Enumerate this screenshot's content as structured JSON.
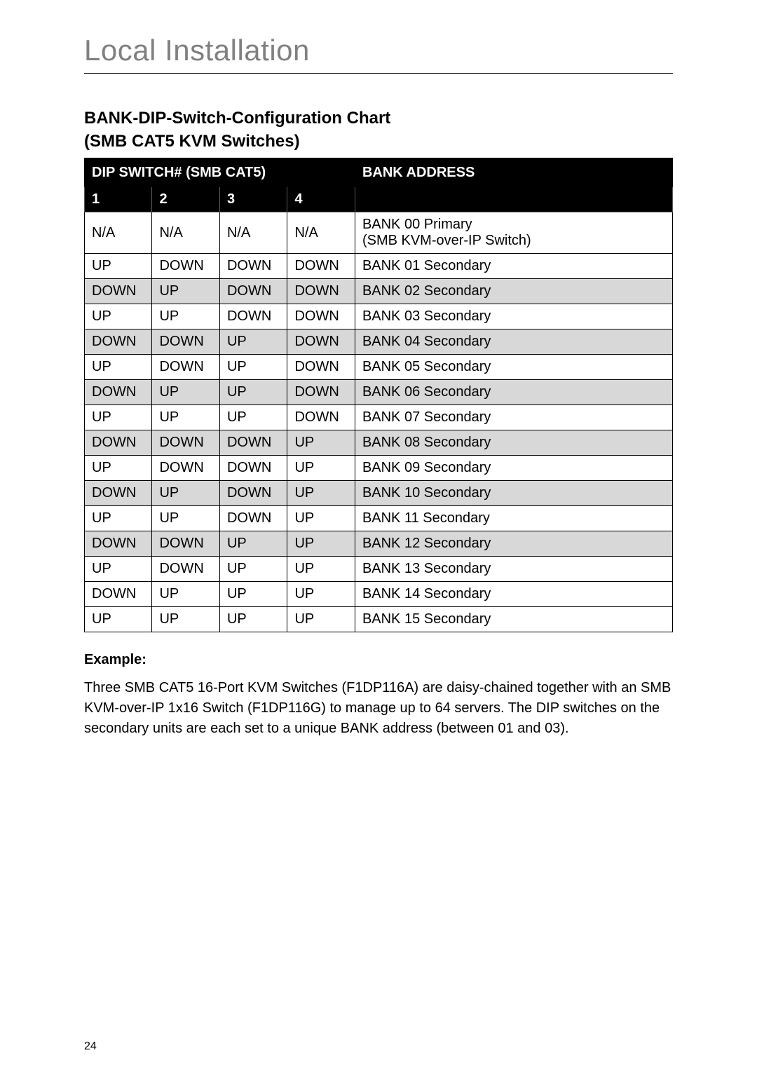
{
  "page": {
    "title": "Local Installation",
    "number": "24"
  },
  "chart": {
    "title_line1": "BANK-DIP-Switch-Configuration Chart",
    "title_line2": "(SMB CAT5 KVM Switches)",
    "header_dip": "DIP SWITCH# (SMB CAT5)",
    "header_bank": "BANK ADDRESS",
    "sub_headers": [
      "1",
      "2",
      "3",
      "4"
    ],
    "column_widths_pct": [
      11.5,
      11.5,
      11.5,
      11.5,
      54
    ],
    "colors": {
      "header_bg": "#000000",
      "header_fg": "#ffffff",
      "row_shade": "#d8d8d8",
      "row_plain": "#ffffff",
      "border": "#000000",
      "title_gray": "#808080"
    },
    "font_sizes_pt": {
      "page_title": 32,
      "section_title": 18,
      "table_cell": 15,
      "body_text": 15,
      "page_number": 12
    },
    "rows": [
      {
        "sw": [
          "N/A",
          "N/A",
          "N/A",
          "N/A"
        ],
        "addr": "BANK 00 Primary\n(SMB KVM-over-IP Switch)",
        "shaded": false
      },
      {
        "sw": [
          "UP",
          "DOWN",
          "DOWN",
          "DOWN"
        ],
        "addr": "BANK 01 Secondary",
        "shaded": false
      },
      {
        "sw": [
          "DOWN",
          "UP",
          "DOWN",
          "DOWN"
        ],
        "addr": "BANK 02 Secondary",
        "shaded": true
      },
      {
        "sw": [
          "UP",
          "UP",
          "DOWN",
          "DOWN"
        ],
        "addr": "BANK 03 Secondary",
        "shaded": false
      },
      {
        "sw": [
          "DOWN",
          "DOWN",
          "UP",
          "DOWN"
        ],
        "addr": "BANK 04 Secondary",
        "shaded": true
      },
      {
        "sw": [
          "UP",
          "DOWN",
          "UP",
          "DOWN"
        ],
        "addr": "BANK 05 Secondary",
        "shaded": false
      },
      {
        "sw": [
          "DOWN",
          "UP",
          "UP",
          "DOWN"
        ],
        "addr": "BANK 06 Secondary",
        "shaded": true
      },
      {
        "sw": [
          "UP",
          "UP",
          "UP",
          "DOWN"
        ],
        "addr": "BANK 07 Secondary",
        "shaded": false
      },
      {
        "sw": [
          "DOWN",
          "DOWN",
          "DOWN",
          "UP"
        ],
        "addr": "BANK 08 Secondary",
        "shaded": true
      },
      {
        "sw": [
          "UP",
          "DOWN",
          "DOWN",
          "UP"
        ],
        "addr": "BANK 09 Secondary",
        "shaded": false
      },
      {
        "sw": [
          "DOWN",
          "UP",
          "DOWN",
          "UP"
        ],
        "addr": "BANK 10 Secondary",
        "shaded": true
      },
      {
        "sw": [
          "UP",
          "UP",
          "DOWN",
          "UP"
        ],
        "addr": "BANK 11 Secondary",
        "shaded": false
      },
      {
        "sw": [
          "DOWN",
          "DOWN",
          "UP",
          "UP"
        ],
        "addr": "BANK 12 Secondary",
        "shaded": true
      },
      {
        "sw": [
          "UP",
          "DOWN",
          "UP",
          "UP"
        ],
        "addr": "BANK 13 Secondary",
        "shaded": false
      },
      {
        "sw": [
          "DOWN",
          "UP",
          "UP",
          "UP"
        ],
        "addr": "BANK 14 Secondary",
        "shaded": false
      },
      {
        "sw": [
          "UP",
          "UP",
          "UP",
          "UP"
        ],
        "addr": "BANK 15 Secondary",
        "shaded": false
      }
    ]
  },
  "example": {
    "label": "Example:",
    "text": "Three SMB CAT5 16-Port KVM Switches (F1DP116A) are daisy-chained together with an SMB KVM-over-IP 1x16 Switch (F1DP116G) to manage up to 64 servers. The DIP switches on the secondary units are each set to a unique BANK address (between 01 and 03)."
  }
}
